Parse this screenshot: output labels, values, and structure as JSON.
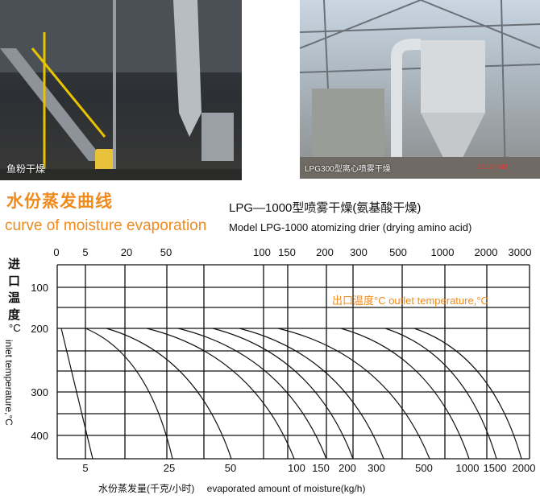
{
  "photos": {
    "left": {
      "caption": "鱼粉干燥"
    },
    "right": {
      "caption": "LPG300型离心喷雾干燥",
      "stamp": "23 13:04M"
    }
  },
  "header": {
    "title_cn": "水份蒸发曲线",
    "title_en": "curve of moisture evaporation",
    "model_cn": "LPG—1000型喷雾干燥(氨基酸干燥)",
    "model_en": "Model LPG-1000 atomizing drier (drying amino acid)"
  },
  "colors": {
    "accent": "#f08a1c",
    "grid": "#111111"
  },
  "chart_data": {
    "type": "line",
    "title": "水份蒸发曲线 curve of moisture evaporation",
    "ylabel_cn": "进口温度",
    "ylabel_unit": "°C",
    "ylabel_en": "inlet temperature,°C",
    "xlabel_cn": "水份蒸发量(千克/小时)",
    "xlabel_en": "evaporated amount of moisture(kg/h)",
    "outlet_label": "出口温度°C  outlet temperature,°C",
    "top_ticks": [
      "0",
      "5",
      "20",
      "50",
      "100",
      "150",
      "200",
      "300",
      "500",
      "1000",
      "2000",
      "3000"
    ],
    "bottom_ticks": [
      "5",
      "25",
      "50",
      "100",
      "150",
      "200",
      "300",
      "500",
      "1000",
      "1500",
      "2000"
    ],
    "y_ticks": [
      100,
      200,
      300,
      400
    ],
    "y_range": [
      50,
      460
    ],
    "y_reversed": true,
    "grid": true,
    "curves": [
      {
        "evaporation": 5,
        "inlet_from": 200,
        "inlet_to": 460
      },
      {
        "evaporation": 25,
        "inlet_from": 200,
        "inlet_to": 460
      },
      {
        "evaporation": 50,
        "inlet_from": 200,
        "inlet_to": 460
      },
      {
        "evaporation": 100,
        "inlet_from": 200,
        "inlet_to": 460
      },
      {
        "evaporation": 150,
        "inlet_from": 200,
        "inlet_to": 460
      },
      {
        "evaporation": 200,
        "inlet_from": 200,
        "inlet_to": 460
      },
      {
        "evaporation": 300,
        "inlet_from": 200,
        "inlet_to": 460
      },
      {
        "evaporation": 500,
        "inlet_from": 200,
        "inlet_to": 460
      },
      {
        "evaporation": 1000,
        "inlet_from": 200,
        "inlet_to": 460
      },
      {
        "evaporation": 1500,
        "inlet_from": 200,
        "inlet_to": 460
      },
      {
        "evaporation": 2000,
        "inlet_from": 200,
        "inlet_to": 460
      }
    ]
  }
}
